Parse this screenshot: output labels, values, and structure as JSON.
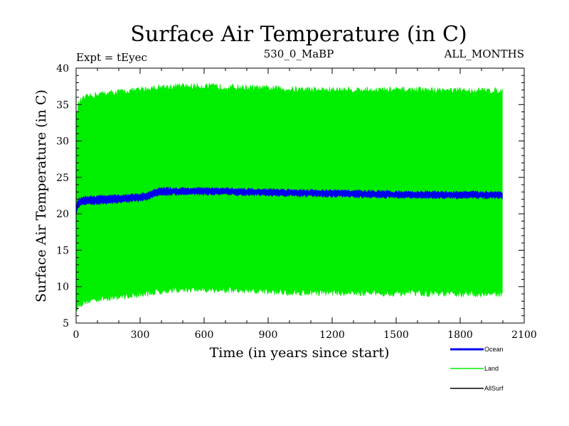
{
  "chart_data": {
    "type": "line",
    "title": "Surface Air Temperature (in C)",
    "subtitle_left": "Expt = tEyec",
    "subtitle_center": "530_0_MaBP",
    "subtitle_right": "ALL_MONTHS",
    "xlabel": "Time (in years since start)",
    "ylabel": "Surface Air Temperature (in C)",
    "xlim": [
      0,
      2100
    ],
    "ylim": [
      5,
      40
    ],
    "x_ticks": [
      0,
      300,
      600,
      900,
      1200,
      1500,
      1800,
      2100
    ],
    "y_ticks": [
      5,
      10,
      15,
      20,
      25,
      30,
      35,
      40
    ],
    "grid": false,
    "legend_position": "bottom-right",
    "series": [
      {
        "name": "Land",
        "color": "#00ee00",
        "style": "envelope",
        "x": [
          0,
          10,
          20,
          50,
          100,
          200,
          300,
          350,
          400,
          500,
          600,
          700,
          800,
          900,
          1000,
          1200,
          1400,
          1600,
          1800,
          1900,
          2000
        ],
        "upper": [
          33.0,
          35.0,
          35.5,
          36.0,
          36.4,
          36.7,
          37.0,
          37.2,
          37.4,
          37.5,
          37.5,
          37.4,
          37.3,
          37.2,
          37.1,
          37.0,
          37.0,
          37.0,
          36.9,
          36.9,
          36.9
        ],
        "lower": [
          7.0,
          7.3,
          7.6,
          8.0,
          8.3,
          8.6,
          8.9,
          9.1,
          9.4,
          9.6,
          9.6,
          9.5,
          9.4,
          9.3,
          9.2,
          9.2,
          9.1,
          9.1,
          9.0,
          9.0,
          9.0
        ]
      },
      {
        "name": "Ocean",
        "color": "#0000ee",
        "style": "band",
        "x": [
          0,
          10,
          30,
          100,
          200,
          300,
          340,
          370,
          400,
          500,
          600,
          800,
          1000,
          1200,
          1400,
          1600,
          1800,
          2000
        ],
        "upper": [
          21.0,
          22.0,
          22.3,
          22.4,
          22.5,
          22.7,
          22.9,
          23.4,
          23.5,
          23.5,
          23.5,
          23.4,
          23.3,
          23.2,
          23.1,
          23.0,
          23.0,
          23.0
        ],
        "lower": [
          20.0,
          21.0,
          21.3,
          21.4,
          21.6,
          21.8,
          22.0,
          22.5,
          22.6,
          22.7,
          22.7,
          22.6,
          22.5,
          22.4,
          22.3,
          22.2,
          22.2,
          22.2
        ]
      },
      {
        "name": "AllSurf",
        "color": "#000000",
        "style": "line",
        "x": [],
        "values": []
      }
    ]
  }
}
